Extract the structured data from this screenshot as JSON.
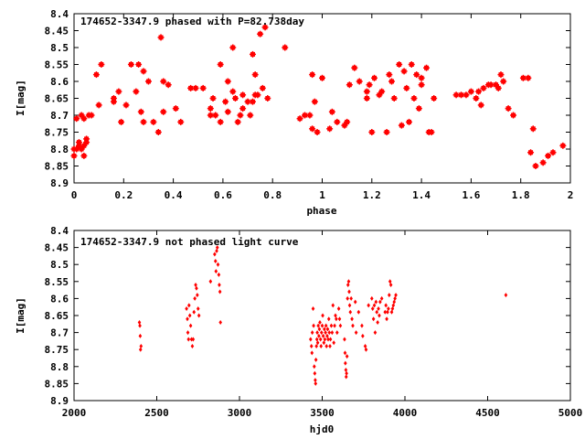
{
  "colors": {
    "points": "#ff0000",
    "axes": "#000000",
    "background": "#ffffff"
  },
  "chart_data": [
    {
      "type": "scatter",
      "title": "174652-3347.9 phased with P=82.738day",
      "xlabel": "phase",
      "ylabel": "I[mag]",
      "xlim": [
        0,
        2
      ],
      "ylim": [
        8.4,
        8.9
      ],
      "y_inverted": true,
      "grid": false,
      "marker": "star",
      "x_ticks": [
        "0",
        "0.2",
        "0.4",
        "0.6",
        "0.8",
        "1",
        "1.2",
        "1.4",
        "1.6",
        "1.8",
        "2"
      ],
      "y_ticks": [
        "8.4",
        "8.45",
        "8.5",
        "8.55",
        "8.6",
        "8.65",
        "8.7",
        "8.75",
        "8.8",
        "8.85",
        "8.9"
      ],
      "points": [
        [
          0.0,
          8.8
        ],
        [
          0.0,
          8.82
        ],
        [
          0.01,
          8.71
        ],
        [
          0.01,
          8.8
        ],
        [
          0.02,
          8.79
        ],
        [
          0.02,
          8.78
        ],
        [
          0.03,
          8.7
        ],
        [
          0.03,
          8.8
        ],
        [
          0.04,
          8.79
        ],
        [
          0.04,
          8.82
        ],
        [
          0.04,
          8.71
        ],
        [
          0.05,
          8.77
        ],
        [
          0.05,
          8.78
        ],
        [
          0.06,
          8.7
        ],
        [
          0.07,
          8.7
        ],
        [
          0.09,
          8.58
        ],
        [
          0.1,
          8.67
        ],
        [
          0.11,
          8.55
        ],
        [
          0.16,
          8.65
        ],
        [
          0.16,
          8.66
        ],
        [
          0.18,
          8.63
        ],
        [
          0.19,
          8.72
        ],
        [
          0.21,
          8.67
        ],
        [
          0.23,
          8.55
        ],
        [
          0.25,
          8.63
        ],
        [
          0.26,
          8.55
        ],
        [
          0.27,
          8.69
        ],
        [
          0.28,
          8.57
        ],
        [
          0.28,
          8.72
        ],
        [
          0.3,
          8.6
        ],
        [
          0.32,
          8.72
        ],
        [
          0.34,
          8.75
        ],
        [
          0.35,
          8.47
        ],
        [
          0.36,
          8.6
        ],
        [
          0.36,
          8.69
        ],
        [
          0.38,
          8.61
        ],
        [
          0.41,
          8.68
        ],
        [
          0.43,
          8.72
        ],
        [
          0.47,
          8.62
        ],
        [
          0.49,
          8.62
        ],
        [
          0.52,
          8.62
        ],
        [
          0.55,
          8.68
        ],
        [
          0.55,
          8.7
        ],
        [
          0.56,
          8.65
        ],
        [
          0.57,
          8.7
        ],
        [
          0.59,
          8.55
        ],
        [
          0.59,
          8.72
        ],
        [
          0.61,
          8.66
        ],
        [
          0.62,
          8.69
        ],
        [
          0.62,
          8.6
        ],
        [
          0.64,
          8.5
        ],
        [
          0.64,
          8.63
        ],
        [
          0.65,
          8.65
        ],
        [
          0.66,
          8.72
        ],
        [
          0.67,
          8.7
        ],
        [
          0.68,
          8.64
        ],
        [
          0.68,
          8.68
        ],
        [
          0.7,
          8.66
        ],
        [
          0.71,
          8.7
        ],
        [
          0.72,
          8.52
        ],
        [
          0.72,
          8.66
        ],
        [
          0.73,
          8.64
        ],
        [
          0.73,
          8.58
        ],
        [
          0.74,
          8.64
        ],
        [
          0.75,
          8.46
        ],
        [
          0.76,
          8.62
        ],
        [
          0.77,
          8.44
        ],
        [
          0.78,
          8.65
        ],
        [
          0.85,
          8.5
        ],
        [
          0.91,
          8.71
        ],
        [
          0.93,
          8.7
        ],
        [
          0.95,
          8.7
        ],
        [
          0.96,
          8.58
        ],
        [
          0.96,
          8.74
        ],
        [
          0.97,
          8.66
        ],
        [
          0.98,
          8.75
        ],
        [
          1.0,
          8.59
        ],
        [
          1.03,
          8.74
        ],
        [
          1.04,
          8.69
        ],
        [
          1.06,
          8.72
        ],
        [
          1.09,
          8.73
        ],
        [
          1.1,
          8.72
        ],
        [
          1.11,
          8.61
        ],
        [
          1.13,
          8.56
        ],
        [
          1.15,
          8.6
        ],
        [
          1.18,
          8.63
        ],
        [
          1.18,
          8.65
        ],
        [
          1.19,
          8.61
        ],
        [
          1.2,
          8.75
        ],
        [
          1.21,
          8.59
        ],
        [
          1.23,
          8.64
        ],
        [
          1.24,
          8.63
        ],
        [
          1.26,
          8.75
        ],
        [
          1.27,
          8.58
        ],
        [
          1.28,
          8.6
        ],
        [
          1.29,
          8.65
        ],
        [
          1.31,
          8.55
        ],
        [
          1.32,
          8.73
        ],
        [
          1.33,
          8.57
        ],
        [
          1.34,
          8.62
        ],
        [
          1.35,
          8.72
        ],
        [
          1.36,
          8.55
        ],
        [
          1.37,
          8.65
        ],
        [
          1.38,
          8.58
        ],
        [
          1.39,
          8.68
        ],
        [
          1.4,
          8.59
        ],
        [
          1.4,
          8.61
        ],
        [
          1.42,
          8.56
        ],
        [
          1.43,
          8.75
        ],
        [
          1.44,
          8.75
        ],
        [
          1.45,
          8.65
        ],
        [
          1.54,
          8.64
        ],
        [
          1.56,
          8.64
        ],
        [
          1.58,
          8.64
        ],
        [
          1.6,
          8.63
        ],
        [
          1.62,
          8.65
        ],
        [
          1.63,
          8.63
        ],
        [
          1.64,
          8.67
        ],
        [
          1.65,
          8.62
        ],
        [
          1.67,
          8.61
        ],
        [
          1.68,
          8.61
        ],
        [
          1.7,
          8.61
        ],
        [
          1.71,
          8.62
        ],
        [
          1.72,
          8.58
        ],
        [
          1.73,
          8.6
        ],
        [
          1.75,
          8.68
        ],
        [
          1.77,
          8.7
        ],
        [
          1.81,
          8.59
        ],
        [
          1.83,
          8.59
        ],
        [
          1.84,
          8.81
        ],
        [
          1.85,
          8.74
        ],
        [
          1.86,
          8.85
        ],
        [
          1.89,
          8.84
        ],
        [
          1.91,
          8.82
        ],
        [
          1.93,
          8.81
        ],
        [
          1.97,
          8.79
        ]
      ]
    },
    {
      "type": "scatter",
      "title": "174652-3347.9 not phased light curve",
      "xlabel": "hjd0",
      "ylabel": "I[mag]",
      "xlim": [
        2000,
        5000
      ],
      "ylim": [
        8.4,
        8.9
      ],
      "y_inverted": true,
      "grid": false,
      "marker": "diamond",
      "x_ticks": [
        "2000",
        "2500",
        "3000",
        "3500",
        "4000",
        "4500",
        "5000"
      ],
      "y_ticks": [
        "8.4",
        "8.45",
        "8.5",
        "8.55",
        "8.6",
        "8.65",
        "8.7",
        "8.75",
        "8.8",
        "8.85",
        "8.9"
      ],
      "points": [
        [
          2395,
          8.67
        ],
        [
          2398,
          8.68
        ],
        [
          2400,
          8.71
        ],
        [
          2402,
          8.75
        ],
        [
          2405,
          8.74
        ],
        [
          2680,
          8.63
        ],
        [
          2685,
          8.66
        ],
        [
          2688,
          8.7
        ],
        [
          2692,
          8.72
        ],
        [
          2695,
          8.62
        ],
        [
          2700,
          8.65
        ],
        [
          2705,
          8.68
        ],
        [
          2710,
          8.72
        ],
        [
          2715,
          8.74
        ],
        [
          2720,
          8.72
        ],
        [
          2725,
          8.64
        ],
        [
          2730,
          8.6
        ],
        [
          2735,
          8.56
        ],
        [
          2740,
          8.57
        ],
        [
          2745,
          8.59
        ],
        [
          2750,
          8.63
        ],
        [
          2755,
          8.65
        ],
        [
          2825,
          8.55
        ],
        [
          2850,
          8.47
        ],
        [
          2855,
          8.49
        ],
        [
          2858,
          8.52
        ],
        [
          2862,
          8.46
        ],
        [
          2866,
          8.45
        ],
        [
          2870,
          8.5
        ],
        [
          2875,
          8.53
        ],
        [
          2878,
          8.56
        ],
        [
          2882,
          8.58
        ],
        [
          2885,
          8.67
        ],
        [
          3430,
          8.72
        ],
        [
          3435,
          8.74
        ],
        [
          3438,
          8.76
        ],
        [
          3440,
          8.7
        ],
        [
          3445,
          8.63
        ],
        [
          3448,
          8.68
        ],
        [
          3452,
          8.8
        ],
        [
          3455,
          8.82
        ],
        [
          3458,
          8.84
        ],
        [
          3460,
          8.85
        ],
        [
          3462,
          8.78
        ],
        [
          3465,
          8.74
        ],
        [
          3468,
          8.72
        ],
        [
          3470,
          8.7
        ],
        [
          3473,
          8.73
        ],
        [
          3476,
          8.68
        ],
        [
          3480,
          8.71
        ],
        [
          3483,
          8.69
        ],
        [
          3486,
          8.67
        ],
        [
          3490,
          8.72
        ],
        [
          3493,
          8.74
        ],
        [
          3496,
          8.7
        ],
        [
          3500,
          8.68
        ],
        [
          3503,
          8.65
        ],
        [
          3506,
          8.71
        ],
        [
          3510,
          8.73
        ],
        [
          3513,
          8.69
        ],
        [
          3516,
          8.72
        ],
        [
          3520,
          8.7
        ],
        [
          3523,
          8.68
        ],
        [
          3526,
          8.74
        ],
        [
          3530,
          8.71
        ],
        [
          3533,
          8.69
        ],
        [
          3536,
          8.72
        ],
        [
          3540,
          8.66
        ],
        [
          3543,
          8.7
        ],
        [
          3547,
          8.74
        ],
        [
          3550,
          8.72
        ],
        [
          3555,
          8.68
        ],
        [
          3560,
          8.7
        ],
        [
          3565,
          8.62
        ],
        [
          3570,
          8.73
        ],
        [
          3575,
          8.68
        ],
        [
          3580,
          8.65
        ],
        [
          3585,
          8.66
        ],
        [
          3590,
          8.7
        ],
        [
          3600,
          8.63
        ],
        [
          3605,
          8.66
        ],
        [
          3610,
          8.68
        ],
        [
          3635,
          8.72
        ],
        [
          3638,
          8.76
        ],
        [
          3640,
          8.79
        ],
        [
          3643,
          8.81
        ],
        [
          3645,
          8.83
        ],
        [
          3647,
          8.82
        ],
        [
          3650,
          8.77
        ],
        [
          3653,
          8.6
        ],
        [
          3656,
          8.56
        ],
        [
          3660,
          8.55
        ],
        [
          3663,
          8.58
        ],
        [
          3666,
          8.62
        ],
        [
          3670,
          8.64
        ],
        [
          3675,
          8.6
        ],
        [
          3680,
          8.66
        ],
        [
          3685,
          8.68
        ],
        [
          3700,
          8.61
        ],
        [
          3705,
          8.7
        ],
        [
          3720,
          8.64
        ],
        [
          3740,
          8.68
        ],
        [
          3745,
          8.71
        ],
        [
          3760,
          8.74
        ],
        [
          3765,
          8.75
        ],
        [
          3780,
          8.62
        ],
        [
          3800,
          8.6
        ],
        [
          3805,
          8.63
        ],
        [
          3810,
          8.66
        ],
        [
          3815,
          8.62
        ],
        [
          3820,
          8.7
        ],
        [
          3825,
          8.61
        ],
        [
          3830,
          8.64
        ],
        [
          3835,
          8.67
        ],
        [
          3840,
          8.63
        ],
        [
          3845,
          8.65
        ],
        [
          3850,
          8.61
        ],
        [
          3860,
          8.6
        ],
        [
          3880,
          8.64
        ],
        [
          3885,
          8.62
        ],
        [
          3890,
          8.66
        ],
        [
          3895,
          8.64
        ],
        [
          3900,
          8.63
        ],
        [
          3905,
          8.59
        ],
        [
          3910,
          8.55
        ],
        [
          3915,
          8.56
        ],
        [
          3920,
          8.64
        ],
        [
          3925,
          8.63
        ],
        [
          3930,
          8.62
        ],
        [
          3935,
          8.61
        ],
        [
          3940,
          8.6
        ],
        [
          3945,
          8.59
        ],
        [
          4610,
          8.59
        ]
      ]
    }
  ]
}
